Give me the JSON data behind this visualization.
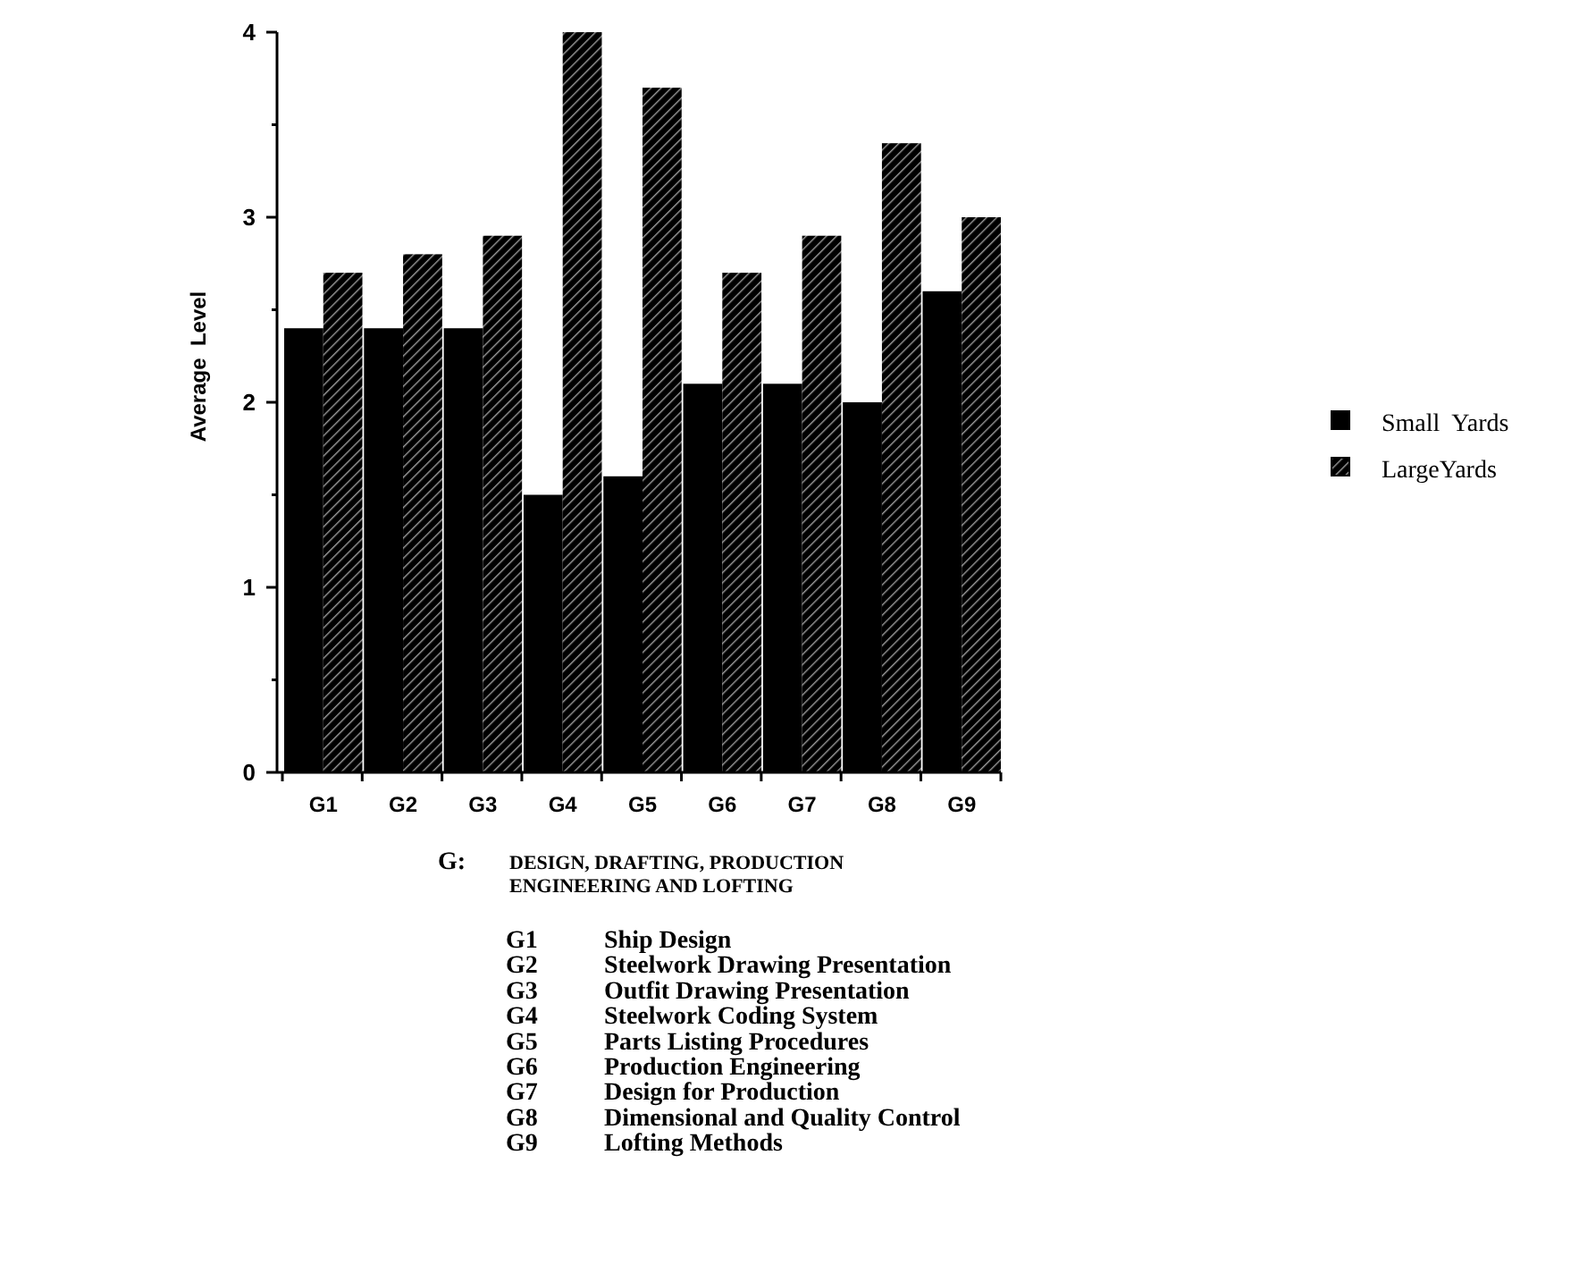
{
  "chart_data": {
    "type": "bar",
    "ylabel": "Average  Level",
    "categories": [
      "G1",
      "G2",
      "G3",
      "G4",
      "G5",
      "G6",
      "G7",
      "G8",
      "G9"
    ],
    "series": [
      {
        "name": "Small  Yards",
        "color": "#000000",
        "values": [
          2.4,
          2.4,
          2.4,
          1.5,
          1.6,
          2.1,
          2.1,
          2.0,
          2.6
        ]
      },
      {
        "name": "LargeYards",
        "color": "#9a9a9a",
        "values": [
          2.7,
          2.8,
          2.9,
          4.0,
          3.7,
          2.7,
          2.9,
          3.4,
          3.0
        ]
      }
    ],
    "ylim": [
      0,
      4
    ],
    "yticks": [
      0,
      {
        "value": 0.5,
        "label": null
      },
      1,
      {
        "value": 1.5,
        "label": null
      },
      2,
      {
        "value": 2.5,
        "label": null
      },
      3,
      {
        "value": 3.5,
        "label": null
      },
      4
    ],
    "grid": false,
    "legend": "right",
    "annotations": [
      "G:",
      "DESIGN, DRAFTING, PRODUCTION",
      "ENGINEERING AND LOFTING",
      "G1 Ship Design",
      "G2 Steelwork Drawing Presentation",
      "G3 Outfit Drawing Presentation",
      "G4 Steelwork Coding System",
      "G5 Parts Listing Procedures",
      "G6 Production Engineering",
      "G7 Design for Production",
      "G8 Dimensional and Quality Control",
      "G9 Lofting Methods"
    ]
  }
}
